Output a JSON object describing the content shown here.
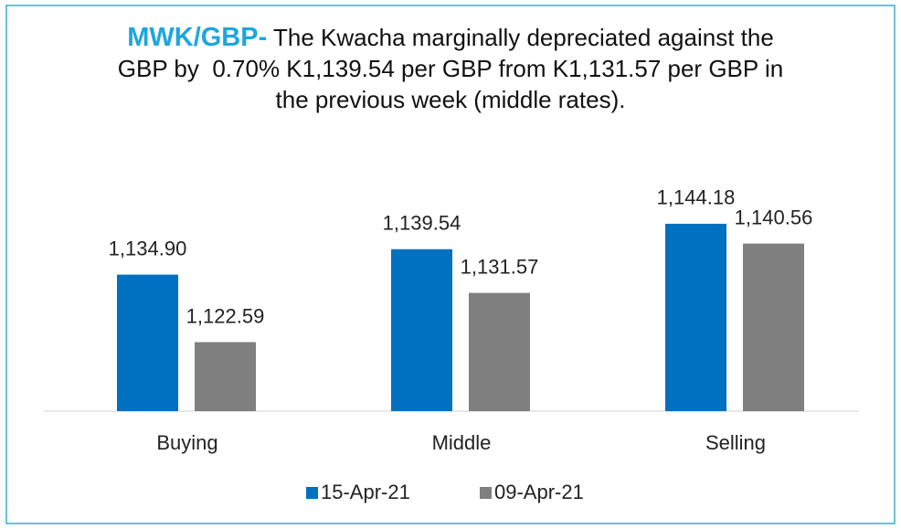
{
  "chart_data": {
    "type": "bar",
    "title": {
      "highlight": "MWK/GBP-",
      "text": "The Kwacha marginally depreciated against the GBP by  0.70% K1,139.54 per GBP from K1,131.57 per GBP in the previous week (middle rates)."
    },
    "categories": [
      "Buying",
      "Middle",
      "Selling"
    ],
    "series": [
      {
        "name": "15-Apr-21",
        "color": "#0070c0",
        "values": [
          1134.9,
          1139.54,
          1144.18
        ],
        "value_labels": [
          "1,134.90",
          "1,139.54",
          "1,144.18"
        ]
      },
      {
        "name": "09-Apr-21",
        "color": "#7f7f7f",
        "values": [
          1122.59,
          1131.57,
          1140.56
        ],
        "value_labels": [
          "1,122.59",
          "1,131.57",
          "1,140.56"
        ]
      }
    ],
    "ylim": [
      1110,
      1150
    ],
    "legend": "bottom"
  }
}
